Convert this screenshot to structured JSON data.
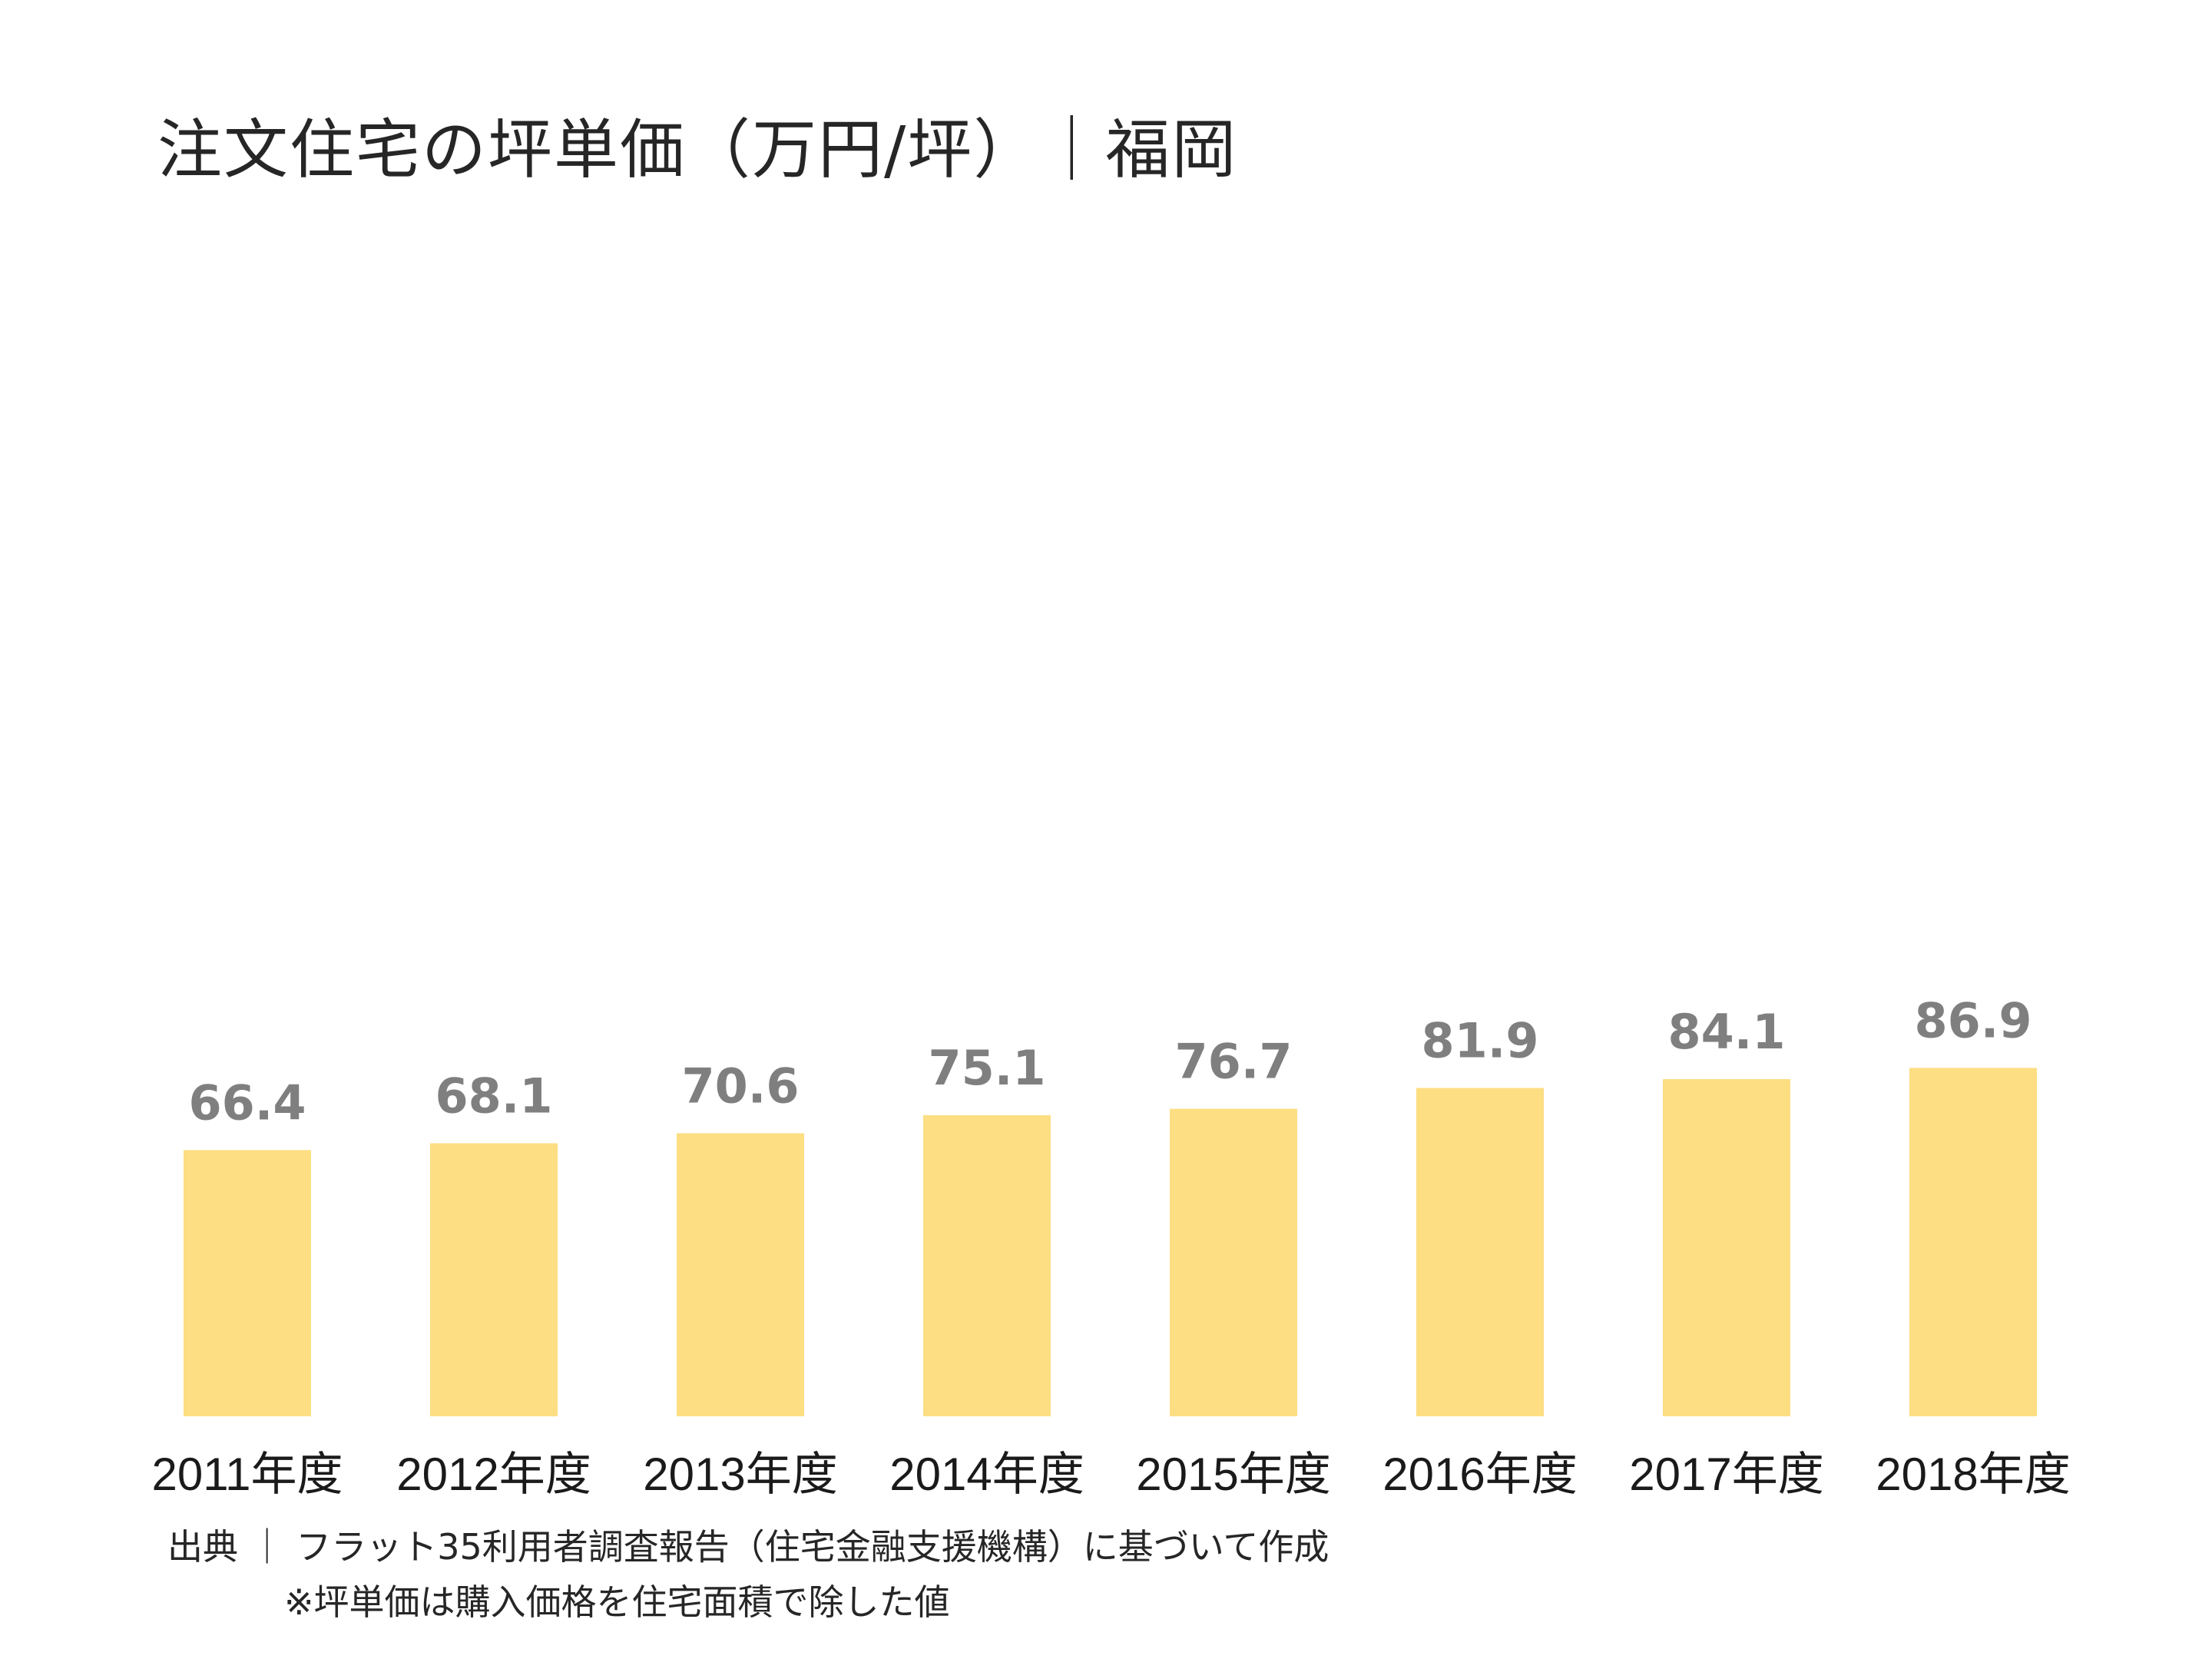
{
  "title": "注文住宅の坪単価（万円/坪）｜福岡",
  "source_text": "出典 ｜ フラット35利用者調査報告（住宅金融支援機構）に基づいて作成",
  "note_text": "※坪単価は購入価格を住宅面積で除した値",
  "colors": {
    "bar": "#fdde82",
    "value_label": "#7f7f7f",
    "text": "#262626"
  },
  "chart_data": {
    "type": "bar",
    "title": "注文住宅の坪単価（万円/坪）｜福岡",
    "categories": [
      "2011年度",
      "2012年度",
      "2013年度",
      "2014年度",
      "2015年度",
      "2016年度",
      "2017年度",
      "2018年度"
    ],
    "values": [
      66.4,
      68.1,
      70.6,
      75.1,
      76.7,
      81.9,
      84.1,
      86.9
    ],
    "value_labels": [
      "66.4",
      "68.1",
      "70.6",
      "75.1",
      "76.7",
      "81.9",
      "84.1",
      "86.9"
    ],
    "ylim": [
      0,
      250
    ],
    "grid": false,
    "legend": "none"
  }
}
